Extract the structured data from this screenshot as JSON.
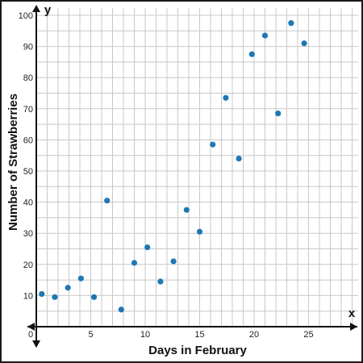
{
  "chart_data": {
    "type": "scatter",
    "title": "",
    "xlabel": "Days in February",
    "ylabel": "Number of Strawberries",
    "x_axis_letter": "x",
    "y_axis_letter": "y",
    "xlim": [
      0,
      30
    ],
    "ylim": [
      0,
      100
    ],
    "x_ticks": [
      0,
      5,
      10,
      15,
      20,
      25
    ],
    "y_ticks": [
      10,
      20,
      30,
      40,
      50,
      60,
      70,
      80,
      90,
      100
    ],
    "grid": true,
    "point_color": "#1f77b4",
    "grid_color": "#c8c8c8",
    "series": [
      {
        "x": [
          0.5,
          1.7,
          2.9,
          4.1,
          5.3,
          6.5,
          7.8,
          9.0,
          10.2,
          11.4,
          12.6,
          13.8,
          15.0,
          16.2,
          17.4,
          18.6,
          19.8,
          21.0,
          22.2,
          23.4,
          24.6
        ],
        "y": [
          10.5,
          9.5,
          12.5,
          15.5,
          9.5,
          40.5,
          5.5,
          20.5,
          25.5,
          14.5,
          21.0,
          37.5,
          30.5,
          58.5,
          73.5,
          54.0,
          87.5,
          93.5,
          68.5,
          97.5,
          91.0
        ]
      }
    ]
  }
}
